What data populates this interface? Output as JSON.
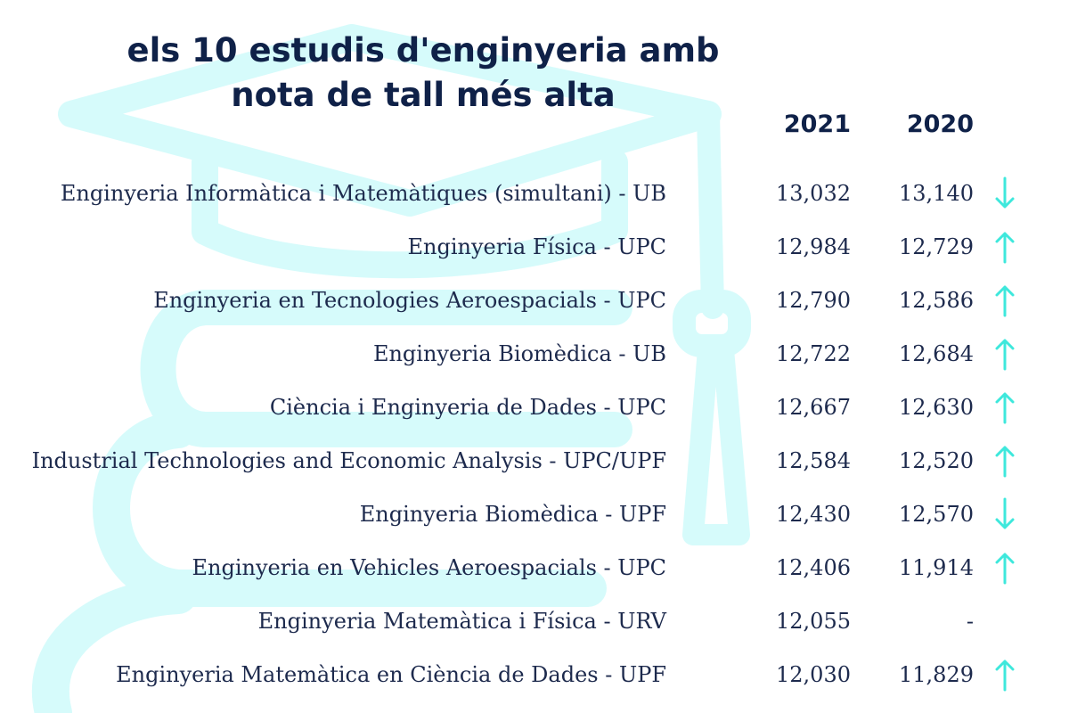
{
  "chart_data": {
    "type": "table",
    "title_lines": [
      "els 10 estudis d'enginyeria amb",
      "nota de tall més alta"
    ],
    "columns": [
      "2021",
      "2020"
    ],
    "rows": [
      {
        "label": "Enginyeria Informàtica i Matemàtiques (simultani) - UB",
        "v2021": "13,032",
        "v2020": "13,140",
        "trend": "down"
      },
      {
        "label": "Enginyeria Física - UPC",
        "v2021": "12,984",
        "v2020": "12,729",
        "trend": "up"
      },
      {
        "label": "Enginyeria en Tecnologies Aeroespacials - UPC",
        "v2021": "12,790",
        "v2020": "12,586",
        "trend": "up"
      },
      {
        "label": "Enginyeria Biomèdica - UB",
        "v2021": "12,722",
        "v2020": "12,684",
        "trend": "up"
      },
      {
        "label": "Ciència i Enginyeria de Dades - UPC",
        "v2021": "12,667",
        "v2020": "12,630",
        "trend": "up"
      },
      {
        "label": "Industrial Technologies and Economic Analysis - UPC/UPF",
        "v2021": "12,584",
        "v2020": "12,520",
        "trend": "up"
      },
      {
        "label": "Enginyeria Biomèdica - UPF",
        "v2021": "12,430",
        "v2020": "12,570",
        "trend": "down"
      },
      {
        "label": "Enginyeria en Vehicles Aeroespacials - UPC",
        "v2021": "12,406",
        "v2020": "11,914",
        "trend": "up"
      },
      {
        "label": "Enginyeria Matemàtica i Física - URV",
        "v2021": "12,055",
        "v2020": "-",
        "trend": "none"
      },
      {
        "label": "Enginyeria Matemàtica en Ciència de Dades - UPF",
        "v2021": "12,030",
        "v2020": "11,829",
        "trend": "up"
      }
    ]
  },
  "colors": {
    "title": "#0f2148",
    "text": "#1d2a4d",
    "arrow": "#3ee8dc",
    "background_illustration": "#d6fbfb"
  },
  "background_icon": "graduation-cap-and-books-icon"
}
